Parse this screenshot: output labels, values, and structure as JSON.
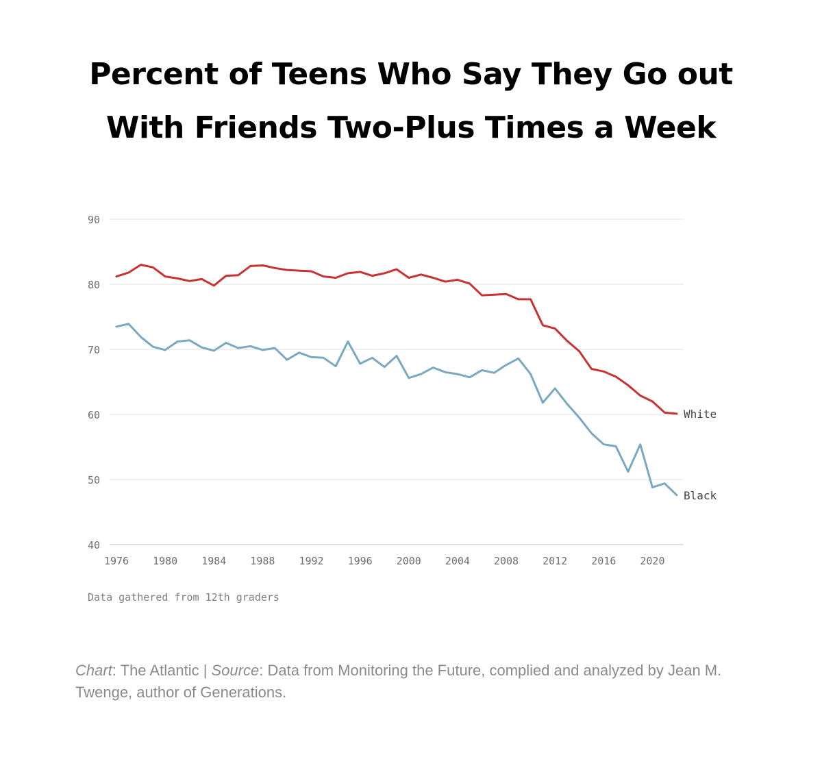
{
  "title_lines": [
    "Percent of Teens Who Say They Go out",
    "With Friends Two-Plus Times a Week"
  ],
  "note": "Data gathered from 12th graders",
  "footer": {
    "chart_label": "Chart",
    "chart_value": ": The Atlantic | ",
    "source_label": "Source",
    "source_value": ": Data from Monitoring the Future, complied and analyzed by Jean M. Twenge, author of Generations."
  },
  "colors": {
    "White": "#c83232",
    "Black": "#7aa8c0",
    "grid": "#e6e6e6"
  },
  "chart_data": {
    "type": "line",
    "title": "Percent of Teens Who Say They Go out With Friends Two-Plus Times a Week",
    "ylim": [
      40,
      90
    ],
    "yticks": [
      40,
      50,
      60,
      70,
      80,
      90
    ],
    "xticks": [
      1976,
      1980,
      1984,
      1988,
      1992,
      1996,
      2000,
      2004,
      2008,
      2012,
      2016,
      2020
    ],
    "grid": true,
    "legend": "end-of-line labels",
    "x": [
      1976,
      1977,
      1978,
      1979,
      1980,
      1981,
      1982,
      1983,
      1984,
      1985,
      1986,
      1987,
      1988,
      1989,
      1990,
      1991,
      1992,
      1993,
      1994,
      1995,
      1996,
      1997,
      1998,
      1999,
      2000,
      2001,
      2002,
      2003,
      2004,
      2005,
      2006,
      2007,
      2008,
      2009,
      2010,
      2011,
      2012,
      2013,
      2014,
      2015,
      2016,
      2017,
      2018,
      2019,
      2020,
      2021,
      2022
    ],
    "series": [
      {
        "name": "White",
        "values": [
          81.2,
          81.8,
          83.0,
          82.6,
          81.2,
          80.9,
          80.5,
          80.8,
          79.8,
          81.3,
          81.4,
          82.8,
          82.9,
          82.5,
          82.2,
          82.1,
          82.0,
          81.2,
          81.0,
          81.7,
          81.9,
          81.3,
          81.7,
          82.3,
          81.0,
          81.5,
          81.0,
          80.4,
          80.7,
          80.1,
          78.3,
          78.4,
          78.5,
          77.7,
          77.7,
          73.7,
          73.2,
          71.3,
          69.7,
          67.0,
          66.6,
          65.8,
          64.5,
          62.9,
          62.0,
          60.3,
          60.1
        ]
      },
      {
        "name": "Black",
        "values": [
          73.5,
          73.9,
          71.9,
          70.4,
          69.9,
          71.2,
          71.4,
          70.3,
          69.8,
          71.0,
          70.2,
          70.5,
          69.9,
          70.2,
          68.4,
          69.5,
          68.8,
          68.7,
          67.4,
          71.2,
          67.8,
          68.7,
          67.3,
          69.0,
          65.6,
          66.2,
          67.2,
          66.5,
          66.2,
          65.7,
          66.8,
          66.4,
          67.6,
          68.6,
          66.2,
          61.8,
          64.0,
          61.6,
          59.5,
          57.1,
          55.4,
          55.1,
          51.2,
          55.4,
          48.8,
          49.4,
          47.6
        ]
      }
    ]
  }
}
